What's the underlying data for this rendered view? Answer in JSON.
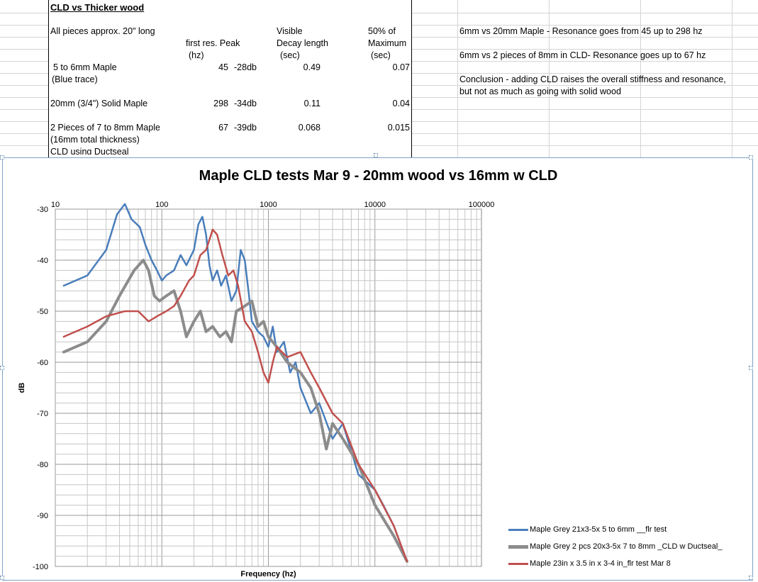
{
  "spreadsheet": {
    "title": "CLD vs Thicker wood",
    "note": "All pieces approx. 20\" long",
    "headers": {
      "res_line1": "first res. Peak",
      "res_line2": "(hz)",
      "decay_line1": "Visible",
      "decay_line2": "Decay length",
      "decay_line3": "(sec)",
      "max_line1": "50% of",
      "max_line2": "Maximum",
      "max_line3": "(sec)"
    },
    "rows": [
      {
        "label1": "5 to 6mm Maple",
        "label2": "(Blue trace)",
        "freq": "45",
        "db": "-28db",
        "decay": "0.49",
        "half": "0.07"
      },
      {
        "label1": "20mm (3/4\") Solid Maple",
        "label2": "",
        "freq": "298",
        "db": "-34db",
        "decay": "0.11",
        "half": "0.04"
      },
      {
        "label1": "2 Pieces of 7 to 8mm Maple",
        "label2": "(16mm total thickness)",
        "label3": "CLD using Ductseal",
        "freq": "67",
        "db": "-39db",
        "decay": "0.068",
        "half": "0.015"
      }
    ],
    "notes": [
      "6mm vs 20mm Maple - Resonance goes from 45 up to 298 hz",
      "6mm vs 2 pieces of 8mm in CLD- Resonance goes up to 67 hz",
      "Conclusion - adding CLD raises the overall stiffness and resonance,",
      "but not as much as going with solid wood"
    ]
  },
  "chart_data": {
    "type": "line",
    "title": "Maple CLD tests Mar 9 - 20mm wood vs 16mm w CLD",
    "xlabel": "Frequency (hz)",
    "ylabel": "dB",
    "xscale": "log",
    "xlim": [
      10,
      100000
    ],
    "ylim": [
      -100,
      -30
    ],
    "x_ticks": [
      "10",
      "100",
      "1000",
      "10000",
      "100000"
    ],
    "y_ticks": [
      "-30",
      "-40",
      "-50",
      "-60",
      "-70",
      "-80",
      "-90",
      "-100"
    ],
    "grid": true,
    "legend_position": "right",
    "series": [
      {
        "name": "Maple Grey 21x3-5x 5 to 6mm __flr test",
        "color": "#4a7ebb",
        "points": [
          [
            12,
            -45
          ],
          [
            20,
            -43
          ],
          [
            30,
            -38
          ],
          [
            38,
            -31
          ],
          [
            45,
            -29
          ],
          [
            52,
            -32
          ],
          [
            62,
            -33.5
          ],
          [
            70,
            -37
          ],
          [
            80,
            -40
          ],
          [
            90,
            -42
          ],
          [
            100,
            -44
          ],
          [
            110,
            -43
          ],
          [
            130,
            -42
          ],
          [
            150,
            -39
          ],
          [
            170,
            -41
          ],
          [
            200,
            -38
          ],
          [
            220,
            -33
          ],
          [
            240,
            -31.5
          ],
          [
            260,
            -35
          ],
          [
            280,
            -41
          ],
          [
            300,
            -44
          ],
          [
            330,
            -42
          ],
          [
            360,
            -45
          ],
          [
            400,
            -43
          ],
          [
            450,
            -48
          ],
          [
            500,
            -46
          ],
          [
            550,
            -38
          ],
          [
            600,
            -40
          ],
          [
            650,
            -46
          ],
          [
            700,
            -52
          ],
          [
            800,
            -54
          ],
          [
            900,
            -55
          ],
          [
            1000,
            -57
          ],
          [
            1100,
            -53
          ],
          [
            1200,
            -58
          ],
          [
            1400,
            -56
          ],
          [
            1600,
            -62
          ],
          [
            1800,
            -60
          ],
          [
            2000,
            -65
          ],
          [
            2500,
            -70
          ],
          [
            3000,
            -68
          ],
          [
            4000,
            -75
          ],
          [
            5000,
            -72
          ],
          [
            7000,
            -82
          ],
          [
            10000,
            -85
          ],
          [
            12000,
            -88
          ],
          [
            15000,
            -92
          ],
          [
            20000,
            -99
          ]
        ]
      },
      {
        "name": "Maple Grey 2 pcs 20x3-5x 7 to 8mm _CLD w  Ductseal_",
        "color": "#8c8c8c",
        "points": [
          [
            12,
            -58
          ],
          [
            20,
            -56
          ],
          [
            30,
            -52
          ],
          [
            40,
            -47
          ],
          [
            55,
            -42
          ],
          [
            67,
            -40
          ],
          [
            75,
            -42
          ],
          [
            85,
            -47
          ],
          [
            95,
            -48
          ],
          [
            110,
            -47
          ],
          [
            130,
            -46
          ],
          [
            150,
            -50
          ],
          [
            170,
            -55
          ],
          [
            200,
            -52
          ],
          [
            230,
            -50
          ],
          [
            260,
            -54
          ],
          [
            300,
            -53
          ],
          [
            350,
            -55
          ],
          [
            400,
            -54
          ],
          [
            450,
            -56
          ],
          [
            500,
            -50
          ],
          [
            600,
            -49
          ],
          [
            700,
            -48
          ],
          [
            800,
            -53
          ],
          [
            900,
            -52
          ],
          [
            1000,
            -55
          ],
          [
            1200,
            -57
          ],
          [
            1500,
            -60
          ],
          [
            2000,
            -62
          ],
          [
            2500,
            -65
          ],
          [
            3000,
            -70
          ],
          [
            3500,
            -77
          ],
          [
            4000,
            -72
          ],
          [
            5000,
            -75
          ],
          [
            7000,
            -80
          ],
          [
            10000,
            -88
          ],
          [
            15000,
            -94
          ],
          [
            20000,
            -99
          ]
        ]
      },
      {
        "name": "Maple 23in x 3.5 in x 3-4 in_flr test Mar 8",
        "color": "#c0504d",
        "points": [
          [
            12,
            -55
          ],
          [
            20,
            -53
          ],
          [
            30,
            -51
          ],
          [
            45,
            -50
          ],
          [
            60,
            -50
          ],
          [
            75,
            -52
          ],
          [
            90,
            -51
          ],
          [
            110,
            -50
          ],
          [
            130,
            -49
          ],
          [
            150,
            -47
          ],
          [
            180,
            -44
          ],
          [
            200,
            -43
          ],
          [
            230,
            -39
          ],
          [
            260,
            -38
          ],
          [
            290,
            -35
          ],
          [
            300,
            -34
          ],
          [
            330,
            -35
          ],
          [
            370,
            -39
          ],
          [
            420,
            -43
          ],
          [
            470,
            -42
          ],
          [
            520,
            -45
          ],
          [
            600,
            -52
          ],
          [
            700,
            -54
          ],
          [
            800,
            -58
          ],
          [
            900,
            -62
          ],
          [
            1000,
            -64
          ],
          [
            1100,
            -60
          ],
          [
            1200,
            -57
          ],
          [
            1500,
            -59
          ],
          [
            2000,
            -58
          ],
          [
            2500,
            -62
          ],
          [
            3000,
            -65
          ],
          [
            4000,
            -70
          ],
          [
            5000,
            -72
          ],
          [
            7000,
            -80
          ],
          [
            10000,
            -85
          ],
          [
            15000,
            -92
          ],
          [
            20000,
            -99
          ]
        ]
      }
    ]
  }
}
